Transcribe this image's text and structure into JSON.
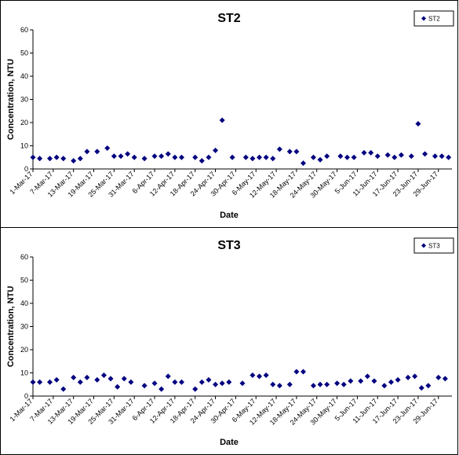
{
  "chart_data": [
    {
      "type": "scatter",
      "title": "ST2",
      "xlabel": "Date",
      "ylabel": "Concentration, NTU",
      "ylim": [
        0,
        60
      ],
      "yticks": [
        "0",
        "10",
        "20",
        "30",
        "40",
        "50",
        "60"
      ],
      "xlim": [
        "2017-03-01",
        "2017-06-30"
      ],
      "xticks": [
        "1-Mar-17",
        "7-Mar-17",
        "13-Mar-17",
        "19-Mar-17",
        "25-Mar-17",
        "31-Mar-17",
        "6-Apr-17",
        "12-Apr-17",
        "18-Apr-17",
        "24-Apr-17",
        "30-Apr-17",
        "6-May-17",
        "12-May-17",
        "18-May-17",
        "24-May-17",
        "30-May-17",
        "5-Jun-17",
        "11-Jun-17",
        "17-Jun-17",
        "23-Jun-17",
        "29-Jun-17"
      ],
      "grid": false,
      "legend_position": "top-right",
      "marker_color": "#000080",
      "series": [
        {
          "name": "ST2",
          "x": [
            "2017-03-01",
            "2017-03-03",
            "2017-03-06",
            "2017-03-08",
            "2017-03-10",
            "2017-03-13",
            "2017-03-15",
            "2017-03-17",
            "2017-03-20",
            "2017-03-23",
            "2017-03-25",
            "2017-03-27",
            "2017-03-29",
            "2017-03-31",
            "2017-04-03",
            "2017-04-06",
            "2017-04-08",
            "2017-04-10",
            "2017-04-12",
            "2017-04-14",
            "2017-04-18",
            "2017-04-20",
            "2017-04-22",
            "2017-04-24",
            "2017-04-26",
            "2017-04-29",
            "2017-05-03",
            "2017-05-05",
            "2017-05-07",
            "2017-05-09",
            "2017-05-11",
            "2017-05-13",
            "2017-05-16",
            "2017-05-18",
            "2017-05-20",
            "2017-05-23",
            "2017-05-25",
            "2017-05-27",
            "2017-05-31",
            "2017-06-02",
            "2017-06-04",
            "2017-06-07",
            "2017-06-09",
            "2017-06-11",
            "2017-06-14",
            "2017-06-16",
            "2017-06-18",
            "2017-06-21",
            "2017-06-23",
            "2017-06-25",
            "2017-06-28",
            "2017-06-30",
            "2017-07-02"
          ],
          "y": [
            5,
            4.5,
            4.5,
            5,
            4.5,
            3.5,
            4.5,
            7.5,
            7.5,
            9,
            5.5,
            5.5,
            6.5,
            5,
            4.5,
            5.5,
            5.5,
            6.5,
            5,
            5,
            5,
            3.5,
            5,
            8,
            21,
            5,
            5,
            4.5,
            5,
            5,
            4.5,
            8.5,
            7.5,
            7.5,
            2.5,
            5,
            4,
            5.5,
            5.5,
            5,
            5,
            7,
            7,
            5.5,
            6,
            5,
            6,
            5.5,
            19.5,
            6.5,
            5.5,
            5.5,
            5
          ]
        }
      ]
    },
    {
      "type": "scatter",
      "title": "ST3",
      "xlabel": "Date",
      "ylabel": "Concentration, NTU",
      "ylim": [
        0,
        60
      ],
      "yticks": [
        "0",
        "10",
        "20",
        "30",
        "40",
        "50",
        "60"
      ],
      "xlim": [
        "2017-03-01",
        "2017-06-30"
      ],
      "xticks": [
        "1-Mar-17",
        "7-Mar-17",
        "13-Mar-17",
        "19-Mar-17",
        "25-Mar-17",
        "31-Mar-17",
        "6-Apr-17",
        "12-Apr-17",
        "18-Apr-17",
        "24-Apr-17",
        "30-Apr-17",
        "6-May-17",
        "12-May-17",
        "18-May-17",
        "24-May-17",
        "30-May-17",
        "5-Jun-17",
        "11-Jun-17",
        "17-Jun-17",
        "23-Jun-17",
        "29-Jun-17"
      ],
      "grid": false,
      "legend_position": "top-right",
      "marker_color": "#000080",
      "series": [
        {
          "name": "ST3",
          "x": [
            "2017-03-01",
            "2017-03-03",
            "2017-03-06",
            "2017-03-08",
            "2017-03-10",
            "2017-03-13",
            "2017-03-15",
            "2017-03-17",
            "2017-03-20",
            "2017-03-22",
            "2017-03-24",
            "2017-03-26",
            "2017-03-28",
            "2017-03-30",
            "2017-04-03",
            "2017-04-06",
            "2017-04-08",
            "2017-04-10",
            "2017-04-12",
            "2017-04-14",
            "2017-04-18",
            "2017-04-20",
            "2017-04-22",
            "2017-04-24",
            "2017-04-26",
            "2017-04-28",
            "2017-05-02",
            "2017-05-05",
            "2017-05-07",
            "2017-05-09",
            "2017-05-11",
            "2017-05-13",
            "2017-05-16",
            "2017-05-18",
            "2017-05-20",
            "2017-05-23",
            "2017-05-25",
            "2017-05-27",
            "2017-05-30",
            "2017-06-01",
            "2017-06-03",
            "2017-06-06",
            "2017-06-08",
            "2017-06-10",
            "2017-06-13",
            "2017-06-15",
            "2017-06-17",
            "2017-06-20",
            "2017-06-22",
            "2017-06-24",
            "2017-06-26",
            "2017-06-29",
            "2017-07-01"
          ],
          "y": [
            6,
            6,
            6,
            7,
            3,
            8,
            6,
            8,
            7,
            9,
            7.5,
            4,
            7.5,
            6,
            4.5,
            5.5,
            3,
            8.5,
            6,
            6,
            3,
            6,
            7,
            5,
            5.5,
            6,
            5.5,
            9,
            8.5,
            9,
            5,
            4.5,
            5,
            10.5,
            10.5,
            4.5,
            5,
            5,
            5.5,
            5,
            6.5,
            6.5,
            8.5,
            6.5,
            4.5,
            6,
            7,
            8,
            8.5,
            3.5,
            4.5,
            8,
            7.5
          ]
        }
      ]
    }
  ]
}
